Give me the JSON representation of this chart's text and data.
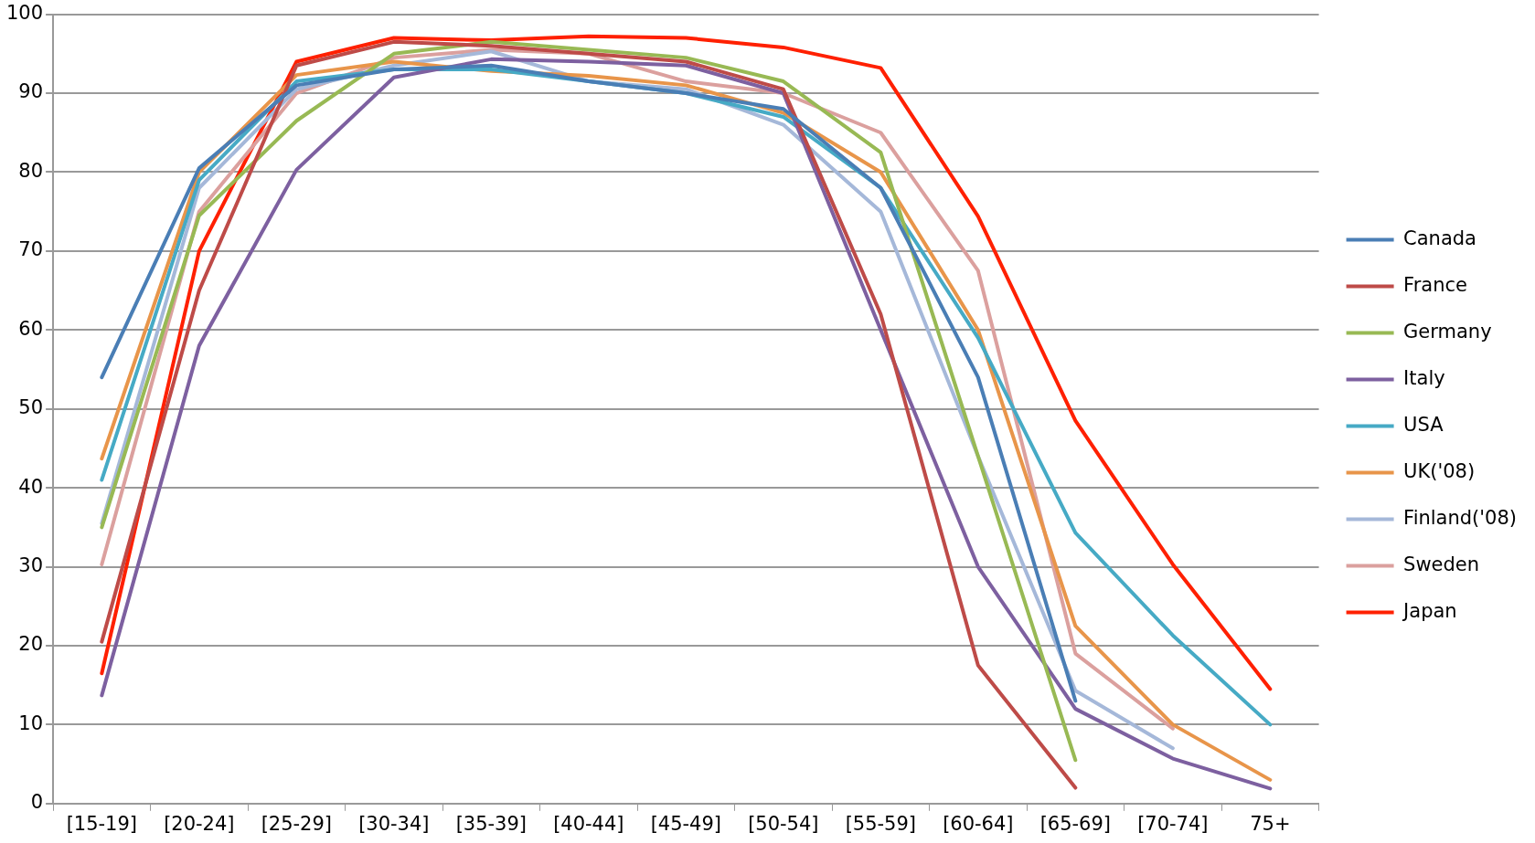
{
  "chart_data": {
    "type": "line",
    "categories": [
      "[15-19]",
      "[20-24]",
      "[25-29]",
      "[30-34]",
      "[35-39]",
      "[40-44]",
      "[45-49]",
      "[50-54]",
      "[55-59]",
      "[60-64]",
      "[65-69]",
      "[70-74]",
      "75+"
    ],
    "ylim": [
      0,
      100
    ],
    "yticks": [
      0,
      10,
      20,
      30,
      40,
      50,
      60,
      70,
      80,
      90,
      100
    ],
    "grid": "y",
    "legend": "right",
    "marker": "none",
    "line_style": "solid",
    "series": [
      {
        "name": "Canada",
        "color": "#4a7eb5",
        "values": [
          54,
          80.5,
          91,
          93,
          93.5,
          91.5,
          90,
          88,
          78,
          54,
          13,
          null,
          null
        ]
      },
      {
        "name": "France",
        "color": "#be4b48",
        "values": [
          20.5,
          65,
          93.5,
          96.5,
          96,
          95,
          94,
          90.5,
          62,
          17.5,
          2,
          null,
          null
        ]
      },
      {
        "name": "Germany",
        "color": "#98b954",
        "values": [
          35,
          74.5,
          86.5,
          95,
          96.5,
          95.5,
          94.5,
          91.5,
          82.5,
          44,
          5.5,
          null,
          null
        ]
      },
      {
        "name": "Italy",
        "color": "#7d60a0",
        "values": [
          13.7,
          58,
          80.3,
          92,
          94.3,
          94,
          93.5,
          90,
          60,
          30,
          12,
          5.7,
          1.9
        ]
      },
      {
        "name": "USA",
        "color": "#46aac5",
        "values": [
          41,
          79,
          91.5,
          93,
          93,
          91.5,
          90,
          87,
          78,
          59,
          34.3,
          21.3,
          10
        ]
      },
      {
        "name": "UK('08)",
        "color": "#e8954a",
        "values": [
          43.7,
          80,
          92.3,
          94,
          92.8,
          92.2,
          91,
          87.5,
          80,
          60,
          22.5,
          10,
          3
        ]
      },
      {
        "name": "Finland('08)",
        "color": "#a5b8d9",
        "values": [
          35.5,
          78,
          90.5,
          93.5,
          95.3,
          91.5,
          90.5,
          86,
          75,
          44,
          14.3,
          7,
          null
        ]
      },
      {
        "name": "Sweden",
        "color": "#dba09e",
        "values": [
          30.3,
          75,
          90,
          94.5,
          95.5,
          95,
          91.5,
          90,
          85,
          67.5,
          19,
          9.5,
          null
        ]
      },
      {
        "name": "Japan",
        "color": "#ff2000",
        "values": [
          16.5,
          70,
          94,
          97,
          96.7,
          97.2,
          97,
          95.8,
          93.2,
          74.4,
          48.5,
          30.3,
          14.5
        ]
      }
    ]
  }
}
